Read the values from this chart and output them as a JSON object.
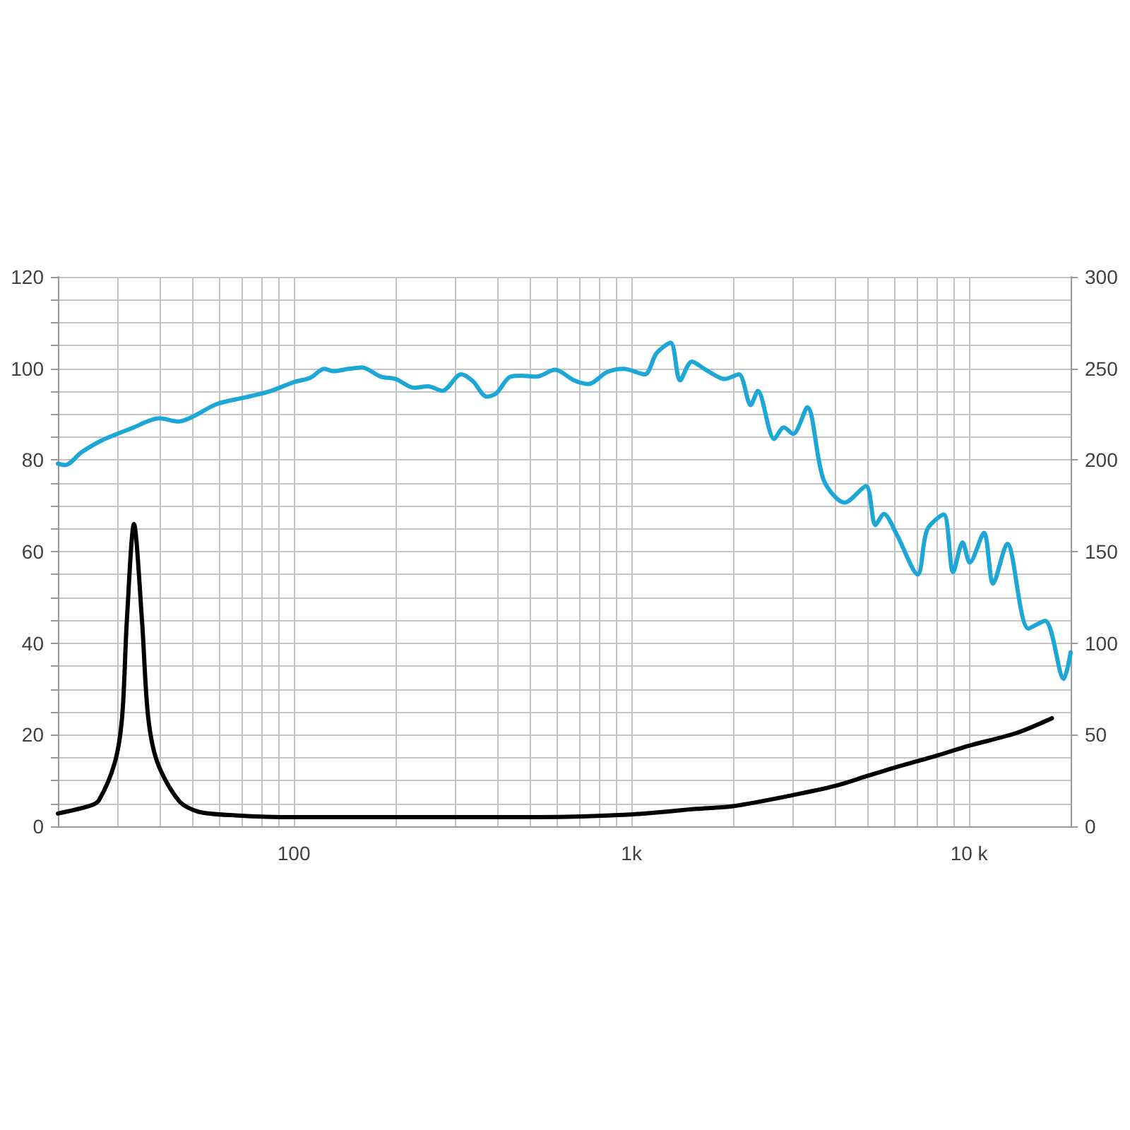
{
  "chart_data": {
    "type": "line",
    "series": [
      {
        "color": "#1da7d6",
        "x": [
          20,
          21,
          23.5,
          27,
          33,
          40,
          45.5,
          50,
          59,
          71,
          84,
          100,
          112,
          123,
          131,
          145,
          159,
          181,
          200,
          227,
          250,
          275,
          313,
          339,
          373,
          398,
          438,
          475,
          523,
          594,
          676,
          745,
          847,
          948,
          1095,
          1186,
          1306,
          1393,
          1510,
          1661,
          1888,
          2080,
          2255,
          2367,
          2648,
          2826,
          3013,
          3318,
          3711,
          4285,
          4950,
          5280,
          5596,
          6100,
          7046,
          7516,
          8406,
          8970,
          9570,
          10050,
          11070,
          11780,
          12980,
          14990,
          16790,
          19070,
          20000
        ],
        "values": [
          79.2,
          78.9,
          81.7,
          84.3,
          86.9,
          89.1,
          88.4,
          89.4,
          92.2,
          93.6,
          94.9,
          97.0,
          98.0,
          99.9,
          99.4,
          99.9,
          100.2,
          98.2,
          97.7,
          95.8,
          96.1,
          95.1,
          98.7,
          97.2,
          93.8,
          94.6,
          98.2,
          98.4,
          98.2,
          99.7,
          97.4,
          96.6,
          99.2,
          99.9,
          98.7,
          103.3,
          105.6,
          97.4,
          101.5,
          99.7,
          97.7,
          98.7,
          92.0,
          95.1,
          84.6,
          87.1,
          85.7,
          91.5,
          75.6,
          70.7,
          74.3,
          65.8,
          68.2,
          63.8,
          55.0,
          64.8,
          68.1,
          55.5,
          62.0,
          57.6,
          64.1,
          53.0,
          61.7,
          43.2,
          44.9,
          32.2,
          38
        ]
      },
      {
        "color": "#000000",
        "axis": "y2",
        "x": [
          20,
          24.7,
          26.4,
          29.5,
          31,
          32,
          33.6,
          35.5,
          37,
          39.4,
          45.6,
          52,
          67,
          100,
          181,
          300,
          500,
          1000,
          1557,
          2000,
          3000,
          4000,
          5000,
          6000,
          7000,
          8000,
          10000,
          13840,
          17600
        ],
        "values": [
          7,
          11,
          14,
          35,
          60,
          112,
          165,
          112,
          60,
          35,
          14,
          8,
          6,
          5,
          5,
          5,
          5,
          6.5,
          9.5,
          11,
          17,
          22,
          27.5,
          32,
          35.5,
          38.5,
          44,
          51,
          59
        ]
      }
    ],
    "xlim": [
      20,
      20000
    ],
    "xticks": [
      {
        "value": 30,
        "label": null
      },
      {
        "value": 40,
        "label": null
      },
      {
        "value": 50,
        "label": null
      },
      {
        "value": 60,
        "label": null
      },
      {
        "value": 70,
        "label": null
      },
      {
        "value": 80,
        "label": null
      },
      {
        "value": 90,
        "label": null
      },
      100,
      {
        "value": 200,
        "label": null
      },
      {
        "value": 300,
        "label": null
      },
      {
        "value": 400,
        "label": null
      },
      {
        "value": 500,
        "label": null
      },
      {
        "value": 600,
        "label": null
      },
      {
        "value": 700,
        "label": null
      },
      {
        "value": 800,
        "label": null
      },
      {
        "value": 900,
        "label": null
      },
      {
        "value": 1000,
        "label": "1k"
      },
      {
        "value": 2000,
        "label": null
      },
      {
        "value": 3000,
        "label": null
      },
      {
        "value": 4000,
        "label": null
      },
      {
        "value": 5000,
        "label": null
      },
      {
        "value": 6000,
        "label": null
      },
      {
        "value": 7000,
        "label": null
      },
      {
        "value": 8000,
        "label": null
      },
      {
        "value": 9000,
        "label": null
      },
      {
        "value": 10000,
        "label": "10 k"
      }
    ],
    "ylim": [
      0,
      120
    ],
    "yticks": [
      0,
      {
        "value": 5,
        "label": null
      },
      {
        "value": 10,
        "label": null
      },
      {
        "value": 15,
        "label": null
      },
      20,
      {
        "value": 25,
        "label": null
      },
      {
        "value": 30,
        "label": null
      },
      {
        "value": 35,
        "label": null
      },
      40,
      {
        "value": 45,
        "label": null
      },
      {
        "value": 50,
        "label": null
      },
      {
        "value": 55,
        "label": null
      },
      60,
      {
        "value": 65,
        "label": null
      },
      {
        "value": 70,
        "label": null
      },
      {
        "value": 75,
        "label": null
      },
      80,
      {
        "value": 85,
        "label": null
      },
      {
        "value": 90,
        "label": null
      },
      {
        "value": 95,
        "label": null
      },
      100,
      {
        "value": 105,
        "label": null
      },
      {
        "value": 110,
        "label": null
      },
      {
        "value": 115,
        "label": null
      },
      120
    ],
    "y2lim": [
      0,
      300
    ],
    "y2ticks": [
      0,
      50,
      100,
      150,
      200,
      250,
      300
    ],
    "log": "x",
    "grid": true,
    "marker": "none"
  }
}
